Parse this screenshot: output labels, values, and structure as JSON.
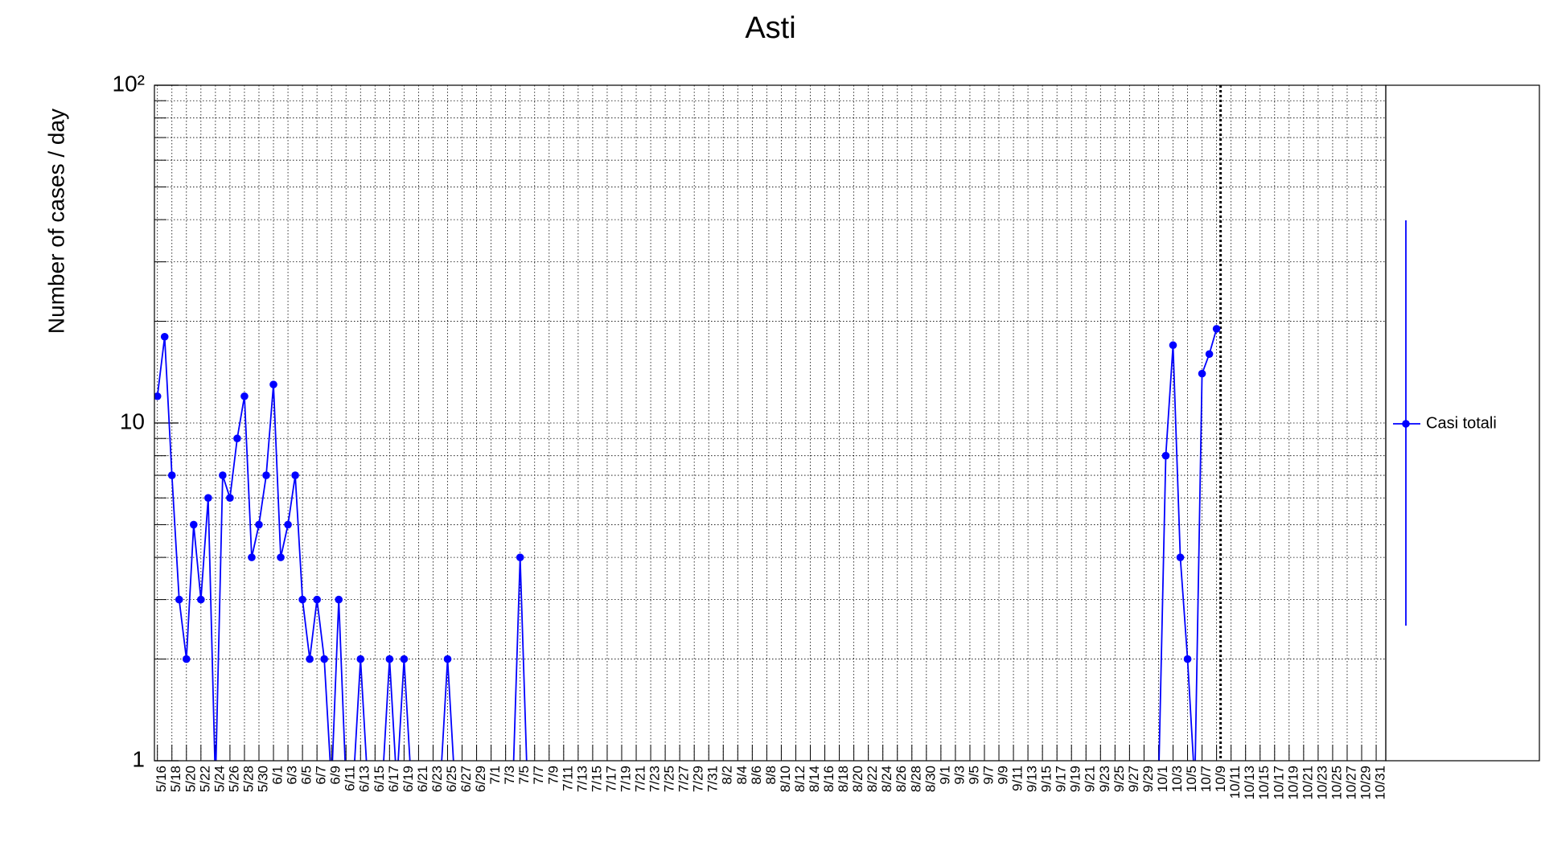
{
  "chart_data": {
    "type": "line",
    "title": "Asti",
    "y_label": "Number of cases / day",
    "log_y": true,
    "grid": true,
    "legend_position": "right",
    "ylim": [
      1,
      100
    ],
    "yticks": [
      1,
      10,
      {
        "value": 100,
        "label": "10²"
      }
    ],
    "yminorticks": [
      2,
      3,
      4,
      5,
      6,
      7,
      8,
      9,
      20,
      30,
      40,
      50,
      60,
      70,
      80,
      90
    ],
    "categories": [
      "5/16",
      null,
      "5/18",
      null,
      "5/20",
      null,
      "5/22",
      null,
      "5/24",
      null,
      "5/26",
      null,
      "5/28",
      null,
      "5/30",
      null,
      "6/1",
      null,
      "6/3",
      null,
      "6/5",
      null,
      "6/7",
      null,
      "6/9",
      null,
      "6/11",
      null,
      "6/13",
      null,
      "6/15",
      null,
      "6/17",
      null,
      "6/19",
      null,
      "6/21",
      null,
      "6/23",
      null,
      "6/25",
      null,
      "6/27",
      null,
      "6/29",
      null,
      "7/1",
      null,
      "7/3",
      null,
      "7/5",
      null,
      "7/7",
      null,
      "7/9",
      null,
      "7/11",
      null,
      "7/13",
      null,
      "7/15",
      null,
      "7/17",
      null,
      "7/19",
      null,
      "7/21",
      null,
      "7/23",
      null,
      "7/25",
      null,
      "7/27",
      null,
      "7/29",
      null,
      "7/31",
      null,
      "8/2",
      null,
      "8/4",
      null,
      "8/6",
      null,
      "8/8",
      null,
      "8/10",
      null,
      "8/12",
      null,
      "8/14",
      null,
      "8/16",
      null,
      "8/18",
      null,
      "8/20",
      null,
      "8/22",
      null,
      "8/24",
      null,
      "8/26",
      null,
      "8/28",
      null,
      "8/30",
      null,
      "9/1",
      null,
      "9/3",
      null,
      "9/5",
      null,
      "9/7",
      null,
      "9/9",
      null,
      "9/11",
      null,
      "9/13",
      null,
      "9/15",
      null,
      "9/17",
      null,
      "9/19",
      null,
      "9/21",
      null,
      "9/23",
      null,
      "9/25",
      null,
      "9/27",
      null,
      "9/29",
      null,
      "10/1",
      null,
      "10/3",
      null,
      "10/5",
      null,
      "10/7",
      null,
      "10/9",
      null,
      "10/11",
      null,
      "10/13",
      null,
      "10/15",
      null,
      "10/17",
      null,
      "10/19",
      null,
      "10/21",
      null,
      "10/23",
      null,
      "10/25",
      null,
      "10/27",
      null,
      "10/29",
      null,
      "10/31"
    ],
    "series": [
      {
        "name": "Casi totali",
        "color": "#0000ff",
        "values": [
          12,
          18,
          7,
          3,
          2,
          5,
          3,
          6,
          0,
          7,
          6,
          9,
          12,
          4,
          5,
          7,
          13,
          4,
          5,
          7,
          3,
          2,
          3,
          2,
          0,
          3,
          0,
          0,
          2,
          0,
          0,
          0,
          2,
          0,
          2,
          0,
          0,
          0,
          0,
          0,
          2,
          0,
          0,
          0,
          0,
          0,
          0,
          0,
          0,
          0,
          4,
          0,
          0,
          0,
          0,
          0,
          0,
          0,
          0,
          0,
          0,
          0,
          0,
          0,
          0,
          0,
          0,
          0,
          0,
          0,
          0,
          0,
          0,
          0,
          0,
          0,
          0,
          0,
          0,
          0,
          0,
          0,
          0,
          0,
          0,
          0,
          0,
          0,
          0,
          0,
          0,
          0,
          0,
          0,
          0,
          0,
          0,
          0,
          0,
          0,
          0,
          0,
          0,
          0,
          0,
          0,
          0,
          0,
          0,
          0,
          0,
          0,
          0,
          0,
          0,
          0,
          0,
          0,
          0,
          0,
          0,
          0,
          0,
          0,
          0,
          0,
          0,
          0,
          0,
          0,
          0,
          0,
          0,
          0,
          0,
          0,
          0,
          0,
          0,
          8,
          17,
          4,
          2,
          0,
          14,
          16,
          19,
          null,
          null,
          null,
          null,
          null,
          null,
          null,
          null,
          null,
          null,
          null,
          null,
          null,
          null,
          null,
          null,
          null,
          null,
          null,
          null,
          null,
          null
        ]
      }
    ]
  }
}
